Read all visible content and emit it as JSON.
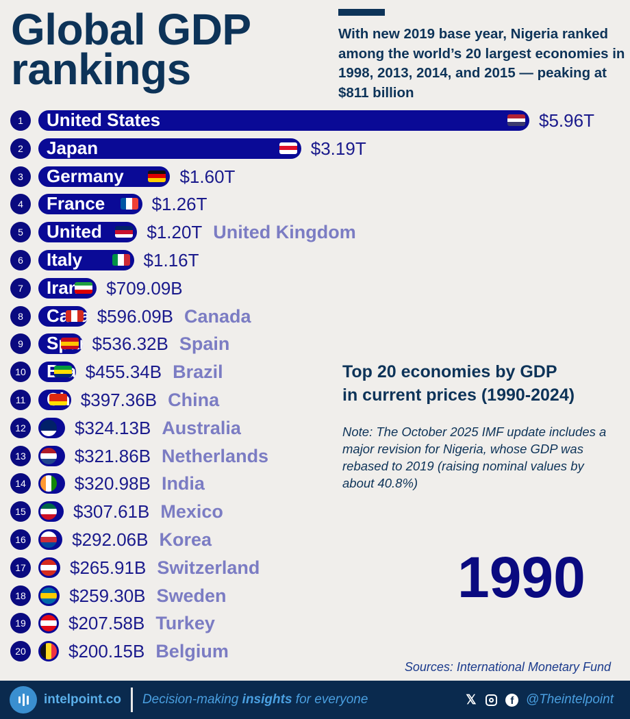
{
  "header": {
    "title_line1": "Global GDP",
    "title_line2": "rankings",
    "subtitle": "With new 2019 base year, Nigeria ranked among the world’s 20 largest economies in 1998, 2013, 2014, and 2015 — peaking at $811 billion"
  },
  "chart_data": {
    "type": "bar",
    "title": "Top 20 economies by GDP in current prices (1990-2024)",
    "year": "1990",
    "unit": "USD trillions",
    "categories": [
      "United States",
      "Japan",
      "Germany",
      "France",
      "United Kingdom",
      "Italy",
      "Iran",
      "Canada",
      "Spain",
      "Brazil",
      "China",
      "Australia",
      "Netherlands",
      "India",
      "Mexico",
      "Korea",
      "Switzerland",
      "Sweden",
      "Turkey",
      "Belgium"
    ],
    "values": [
      5.96,
      3.19,
      1.6,
      1.26,
      1.2,
      1.16,
      0.70909,
      0.59609,
      0.53632,
      0.45534,
      0.39736,
      0.32413,
      0.32186,
      0.32098,
      0.30761,
      0.29206,
      0.26591,
      0.2593,
      0.20758,
      0.20015
    ],
    "value_labels": [
      "$5.96T",
      "$3.19T",
      "$1.60T",
      "$1.26T",
      "$1.20T",
      "$1.16T",
      "$709.09B",
      "$596.09B",
      "$536.32B",
      "$455.34B",
      "$397.36B",
      "$324.13B",
      "$321.86B",
      "$320.98B",
      "$307.61B",
      "$292.06B",
      "$265.91B",
      "$259.30B",
      "$207.58B",
      "$200.15B"
    ],
    "inside_labels": [
      "United States",
      "Japan",
      "Germany",
      "France",
      "United",
      "Italy",
      "Iran",
      "Canada",
      "Spain",
      "Brazil",
      "China",
      "",
      "",
      "",
      "",
      "",
      "",
      "",
      "",
      ""
    ],
    "outside_labels": [
      "",
      "",
      "",
      "",
      "United Kingdom",
      "",
      "",
      "Canada",
      "Spain",
      "Brazil",
      "China",
      "Australia",
      "Netherlands",
      "India",
      "Mexico",
      "Korea",
      "Switzerland",
      "Sweden",
      "Turkey",
      "Belgium"
    ],
    "flags": [
      [
        "#b22234",
        "#ffffff",
        "#3c3b6e"
      ],
      [
        "#ffffff",
        "#e0102a",
        "#ffffff"
      ],
      [
        "#111111",
        "#dd0000",
        "#ffce00"
      ],
      [
        "#0055a4",
        "#ffffff",
        "#ef4135"
      ],
      [
        "#012169",
        "#c8102e",
        "#ffffff"
      ],
      [
        "#009246",
        "#ffffff",
        "#ce2b37"
      ],
      [
        "#239f40",
        "#ffffff",
        "#da0000"
      ],
      [
        "#d52b1e",
        "#ffffff",
        "#d52b1e"
      ],
      [
        "#c60b1e",
        "#ffc400",
        "#c60b1e"
      ],
      [
        "#009c3b",
        "#ffdf00",
        "#002776"
      ],
      [
        "#de2910",
        "#de2910",
        "#ffde00"
      ],
      [
        "#012169",
        "#012169",
        "#ffffff"
      ],
      [
        "#ae1c28",
        "#ffffff",
        "#21468b"
      ],
      [
        "#ff9933",
        "#ffffff",
        "#138808"
      ],
      [
        "#006847",
        "#ffffff",
        "#ce1126"
      ],
      [
        "#ffffff",
        "#cd2e3a",
        "#0047a0"
      ],
      [
        "#d52b1e",
        "#ffffff",
        "#d52b1e"
      ],
      [
        "#006aa7",
        "#fecc00",
        "#006aa7"
      ],
      [
        "#e30a17",
        "#ffffff",
        "#e30a17"
      ],
      [
        "#111111",
        "#fdda24",
        "#ef3340"
      ]
    ],
    "xlim": [
      0,
      5.96
    ]
  },
  "side": {
    "heading_line1": "Top 20 economies by GDP",
    "heading_line2": "in current prices (1990-2024)",
    "note": "Note: The October 2025 IMF update includes a major revision for Nigeria, whose GDP was rebased to 2019 (raising nominal values by about 40.8%)"
  },
  "sources": "Sources: International Monetary Fund",
  "footer": {
    "site": "intelpoint.co",
    "tag_pre": "Decision-making ",
    "tag_bold": "insights",
    "tag_post": " for everyone",
    "x_icon": "𝕏",
    "handle": "@Theintelpoint"
  },
  "colors": {
    "bar": "#0a0a96",
    "title": "#0d3358",
    "footer": "#0a2a4e"
  }
}
